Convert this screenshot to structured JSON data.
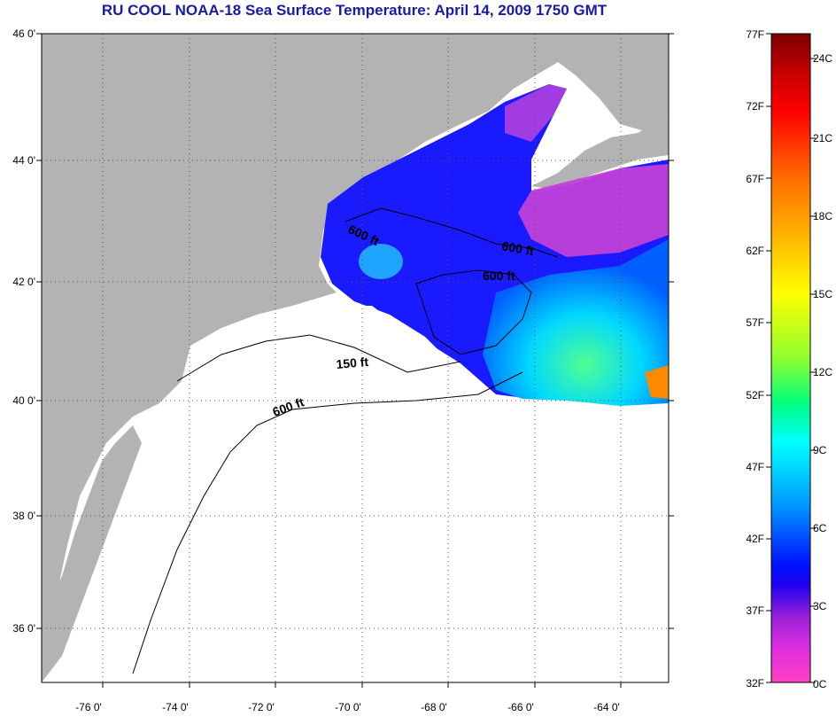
{
  "title": "RU COOL  NOAA-18  Sea Surface Temperature:  April 14, 2009 1750 GMT",
  "map": {
    "lat_labels": [
      "46 0'",
      "44 0'",
      "42 0'",
      "40 0'",
      "38 0'",
      "36 0'"
    ],
    "lon_labels": [
      "-76 0'",
      "-74 0'",
      "-72 0'",
      "-70 0'",
      "-68 0'",
      "-66 0'",
      "-64 0'"
    ],
    "contours": [
      {
        "label": "600 ft"
      },
      {
        "label": "600 ft"
      },
      {
        "label": "600 ft"
      },
      {
        "label": "150 ft"
      },
      {
        "label": "600 ft"
      }
    ],
    "colors": {
      "land": "#b3b3b3",
      "no_data": "#ffffff",
      "grid": "#555555"
    }
  },
  "colorbar": {
    "f_labels": [
      "77F",
      "72F",
      "67F",
      "62F",
      "57F",
      "52F",
      "47F",
      "42F",
      "37F",
      "32F"
    ],
    "c_labels": [
      "24C",
      "21C",
      "18C",
      "15C",
      "12C",
      "9C",
      "6C",
      "3C",
      "0C"
    ]
  }
}
